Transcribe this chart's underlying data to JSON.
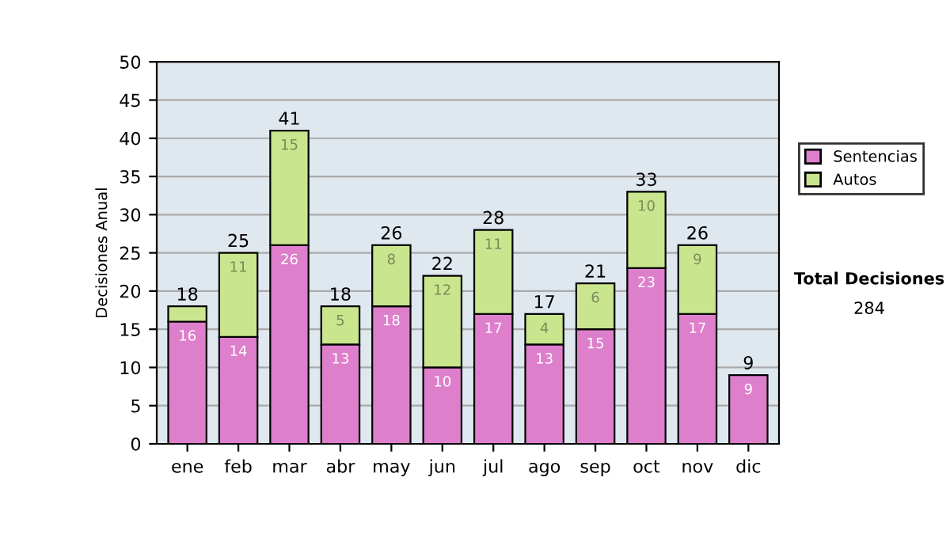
{
  "chart_data": {
    "type": "bar",
    "stacked": true,
    "ylabel": "Decisiones Anual",
    "categories": [
      "ene",
      "feb",
      "mar",
      "abr",
      "may",
      "jun",
      "jul",
      "ago",
      "sep",
      "oct",
      "nov",
      "dic"
    ],
    "series": [
      {
        "name": "Sentencias",
        "color": "#de7fcc",
        "values": [
          16,
          14,
          26,
          13,
          18,
          10,
          17,
          13,
          15,
          23,
          17,
          9
        ],
        "value_labels": [
          "16",
          "14",
          "26",
          "13",
          "18",
          "10",
          "17",
          "13",
          "15",
          "23",
          "17",
          "9"
        ]
      },
      {
        "name": "Autos",
        "color": "#c9e58e",
        "values": [
          2,
          11,
          15,
          5,
          8,
          12,
          11,
          4,
          6,
          10,
          9,
          null
        ],
        "value_labels": [
          null,
          "11",
          "15",
          "5",
          "8",
          "12",
          "11",
          "4",
          "6",
          "10",
          "9",
          null
        ]
      }
    ],
    "totals": [
      "18",
      "25",
      "41",
      "18",
      "26",
      "22",
      "28",
      "17",
      "21",
      "33",
      "26",
      "9"
    ],
    "ylim": [
      0,
      50
    ],
    "yticks": [
      0,
      5,
      10,
      15,
      20,
      25,
      30,
      35,
      40,
      45,
      50
    ],
    "grid": "y",
    "legend": "right",
    "annotations": [
      "Total Decisiones",
      "284"
    ]
  }
}
